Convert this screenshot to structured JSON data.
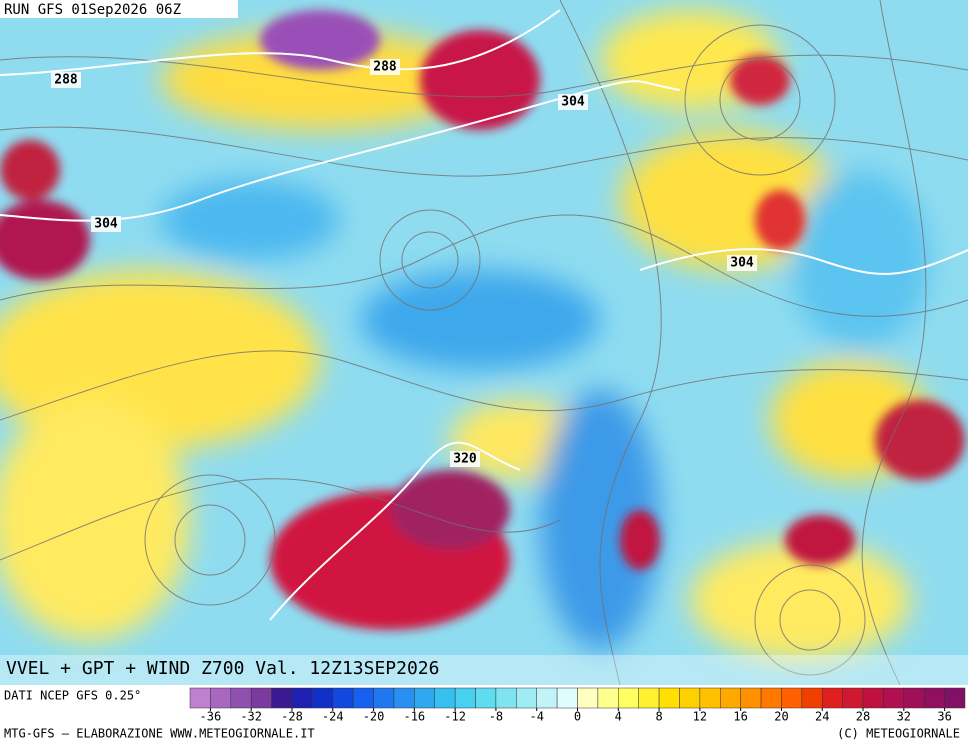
{
  "header": {
    "run": "RUN GFS 01Sep2026 06Z"
  },
  "map": {
    "title": "VVEL + GPT + WIND Z700 Val. 12Z13SEP2026",
    "contour_labels": [
      288,
      288,
      304,
      304,
      304,
      320
    ]
  },
  "colorbar": {
    "source": "DATI NCEP GFS 0.25°",
    "lim": [
      -38,
      38
    ],
    "ticks": [
      -36,
      -32,
      -28,
      -24,
      -20,
      -16,
      -12,
      -8,
      -4,
      0,
      4,
      8,
      12,
      16,
      20,
      24,
      28,
      32,
      36
    ],
    "colors": [
      "#c080d0",
      "#a868c0",
      "#9050b0",
      "#7a3aa0",
      "#3a1a90",
      "#2020b0",
      "#1030c8",
      "#1048e0",
      "#1860f0",
      "#2078f0",
      "#2890f0",
      "#30a8f0",
      "#38c0f0",
      "#48d0f0",
      "#60dcf0",
      "#80e4f0",
      "#a0ecf4",
      "#c0f4f8",
      "#e0fcfc",
      "#ffffc0",
      "#ffff90",
      "#ffff60",
      "#fff030",
      "#ffe000",
      "#ffd000",
      "#ffc000",
      "#ffa800",
      "#ff9000",
      "#ff7800",
      "#ff6000",
      "#f04000",
      "#e02020",
      "#d01830",
      "#c01040",
      "#b01050",
      "#a01058",
      "#901060",
      "#801068"
    ]
  },
  "footer": {
    "left": "MTG-GFS — ELABORAZIONE WWW.METEOGIORNALE.IT",
    "right": "(C) METEOGIORNALE"
  }
}
